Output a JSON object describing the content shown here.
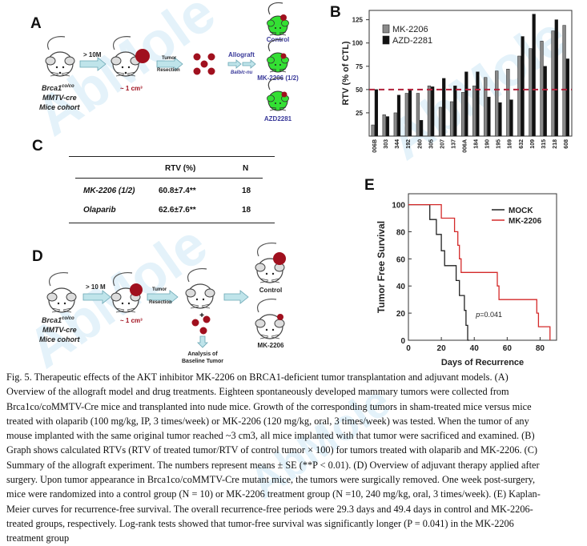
{
  "figure": {
    "panels": {
      "A": {
        "letter": "A",
        "cohort_lines": [
          "Brca1",
          "co/co",
          "MMTV-cre",
          "Mice cohort"
        ],
        "arrow1": "> 10M",
        "tumor_size": "~ 1 cm³",
        "arrow2_top": "Tumor",
        "arrow2_bottom": "Resection",
        "allograft_top": "Allograft",
        "allograft_bottom": "Balb/c-nu",
        "groups": [
          "Control",
          "MK-2206 (1/2)",
          "AZD2281"
        ]
      },
      "B": {
        "letter": "B"
      },
      "C": {
        "letter": "C",
        "columns": [
          "",
          "RTV (%)",
          "N"
        ],
        "rows": [
          {
            "treatment": "MK-2206 (1/2)",
            "rtv": "60.8±7.4**",
            "n": "18"
          },
          {
            "treatment": "Olaparib",
            "rtv": "62.6±7.6**",
            "n": "18"
          }
        ]
      },
      "D": {
        "letter": "D",
        "cohort_lines": [
          "Brca1",
          "co/co",
          "MMTV-cre",
          "Mice cohort"
        ],
        "arrow1": "> 10 M",
        "tumor_size": "~ 1 cm³",
        "arrow2_top": "Tumor",
        "arrow2_bottom": "Resection",
        "plus": "+",
        "analysis_lines": [
          "Analysis of",
          "Baseline Tumor"
        ],
        "groups": [
          "Control",
          "MK-2206"
        ]
      },
      "E": {
        "letter": "E"
      }
    },
    "caption_lines": [
      "Fig. 5. Therapeutic effects of the AKT inhibitor MK-2206 on BRCA1-deficient tumor transplantation and adjuvant models. (A)",
      "Overview of the allograft model and drug treatments. Eighteen spontaneously developed mammary tumors were collected from",
      "Brca1co/coMMTV-Cre mice and transplanted into nude mice. Growth of the corresponding tumors in sham-treated mice versus mice",
      "treated with olaparib (100 mg/kg, IP, 3 times/week) or MK-2206 (120 mg/kg, oral, 3  times/week) was tested. When the tumor of any",
      "mouse implanted with the same original tumor reached ~3 cm3, all mice implanted with that tumor were sacrificed and examined. (B)",
      "Graph shows calculated RTVs (RTV of treated tumor/RTV of control tumor × 100) for tumors treated with olaparib and MK-2206. (C)",
      "Summary  of the allograft experiment. The numbers represent means ± SE (**P < 0.01). (D) Overview of adjuvant therapy applied after",
      "surgery. Upon tumor appearance in Brca1co/coMMTV-Cre mutant mice, the tumors were surgically removed. One week post-surgery,",
      "mice were randomized into a control group (N = 10) or MK-2206 treatment group (N =10, 240 mg/kg, oral, 3 times/week). (E) Kaplan-",
      "Meier curves for recurrence-free survival. The overall recurrence-free periods were 29.3 days and 49.4 days in control and MK-2206-",
      "treated groups, respectively. Log-rank tests showed that tumor-free survival was significantly longer (P = 0.041) in the MK-2206",
      "treatment group"
    ],
    "watermark": "AbMole"
  },
  "colors": {
    "mk2206_bar": "#8a8a8a",
    "azd_bar": "#111111",
    "threshold": "#b0203a",
    "mock": "#222222",
    "mk_line": "#d42a2a",
    "mouse_green": "#33e033",
    "tumor": "#a0101e",
    "label_blue": "#3a3a9a"
  },
  "chart_data": [
    {
      "type": "bar",
      "panel": "B",
      "ylabel": "RTV (% of CTL)",
      "xlabel": "",
      "ylim": [
        0,
        135
      ],
      "yticks": [
        25,
        50,
        75,
        100,
        125
      ],
      "categories": [
        "006B",
        "303",
        "344",
        "192",
        "260",
        "305",
        "207",
        "137",
        "006A",
        "184",
        "190",
        "195",
        "169",
        "632",
        "109",
        "315",
        "218",
        "608"
      ],
      "series": [
        {
          "name": "MK-2206",
          "values": [
            12,
            23,
            25,
            46,
            46,
            54,
            31,
            37,
            47,
            54,
            63,
            70,
            72,
            86,
            94,
            102,
            113,
            119
          ]
        },
        {
          "name": "AZD-2281",
          "values": [
            50,
            21,
            44,
            50,
            17,
            53,
            62,
            54,
            69,
            69,
            42,
            36,
            39,
            107,
            131,
            75,
            125,
            83
          ]
        }
      ],
      "reference_line": {
        "y": 50,
        "style": "dashed"
      },
      "legend": "top-left"
    },
    {
      "type": "line",
      "panel": "E",
      "subtype": "kaplan-meier",
      "xlabel": "Days of Recurrence",
      "ylabel": "Tumor Free Survival",
      "xlim": [
        0,
        90
      ],
      "ylim": [
        0,
        108
      ],
      "xticks": [
        0,
        20,
        40,
        60,
        80
      ],
      "yticks": [
        0,
        20,
        40,
        60,
        80,
        100
      ],
      "series": [
        {
          "name": "MOCK",
          "steps": [
            [
              0,
              100
            ],
            [
              13,
              100
            ],
            [
              13,
              89
            ],
            [
              17,
              89
            ],
            [
              17,
              78
            ],
            [
              20,
              78
            ],
            [
              20,
              66
            ],
            [
              22,
              66
            ],
            [
              22,
              55
            ],
            [
              29,
              55
            ],
            [
              29,
              44
            ],
            [
              31,
              44
            ],
            [
              31,
              33
            ],
            [
              34,
              33
            ],
            [
              34,
              22
            ],
            [
              35,
              22
            ],
            [
              35,
              11
            ],
            [
              36,
              11
            ],
            [
              36,
              0
            ],
            [
              37,
              0
            ]
          ]
        },
        {
          "name": "MK-2206",
          "steps": [
            [
              0,
              100
            ],
            [
              20,
              100
            ],
            [
              20,
              90
            ],
            [
              28,
              90
            ],
            [
              28,
              80
            ],
            [
              30,
              80
            ],
            [
              30,
              70
            ],
            [
              31,
              70
            ],
            [
              31,
              60
            ],
            [
              32,
              60
            ],
            [
              32,
              50
            ],
            [
              54,
              50
            ],
            [
              54,
              40
            ],
            [
              55,
              40
            ],
            [
              55,
              30
            ],
            [
              78,
              30
            ],
            [
              78,
              20
            ],
            [
              79,
              20
            ],
            [
              79,
              10
            ],
            [
              86,
              10
            ],
            [
              86,
              0
            ]
          ]
        }
      ],
      "annotation": "p=0.041",
      "legend": "top-right"
    }
  ]
}
